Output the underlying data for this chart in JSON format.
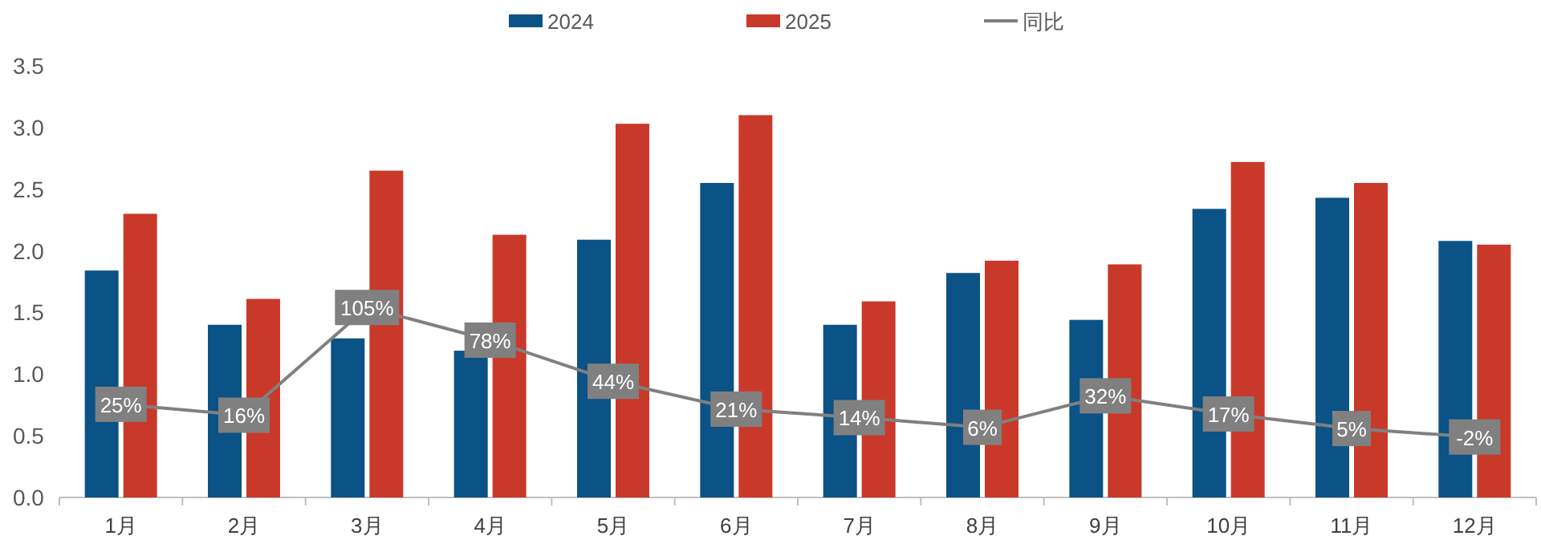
{
  "chart_data": {
    "type": "bar",
    "categories": [
      "1月",
      "2月",
      "3月",
      "4月",
      "5月",
      "6月",
      "7月",
      "8月",
      "9月",
      "10月",
      "11月",
      "12月"
    ],
    "series": [
      {
        "name": "2024",
        "color": "#0b5286",
        "values": [
          1.84,
          1.4,
          1.29,
          1.19,
          2.09,
          2.55,
          1.4,
          1.82,
          1.44,
          2.34,
          2.43,
          2.08
        ]
      },
      {
        "name": "2025",
        "color": "#c9392a",
        "values": [
          2.3,
          1.61,
          2.65,
          2.13,
          3.03,
          3.1,
          1.59,
          1.92,
          1.89,
          2.72,
          2.55,
          2.05
        ]
      },
      {
        "name": "同比",
        "type": "line",
        "axis": "y2",
        "color": "#808080",
        "values": [
          25,
          16,
          105,
          78,
          44,
          21,
          14,
          6,
          32,
          17,
          5,
          -2
        ],
        "value_labels": [
          "25%",
          "16%",
          "105%",
          "78%",
          "44%",
          "21%",
          "14%",
          "6%",
          "32%",
          "17%",
          "5%",
          "-2%"
        ]
      }
    ],
    "ylim": [
      0,
      3.5
    ],
    "yticks": [
      {
        "value": 0,
        "label": "0.0"
      },
      {
        "value": 0.5,
        "label": "0.5"
      },
      {
        "value": 1,
        "label": "1.0"
      },
      {
        "value": 1.5,
        "label": "1.5"
      },
      {
        "value": 2,
        "label": "2.0"
      },
      {
        "value": 2.5,
        "label": "2.5"
      },
      {
        "value": 3,
        "label": "3.0"
      },
      {
        "value": 3.5,
        "label": "3.5"
      }
    ],
    "marker": "square",
    "legend": "top",
    "grid": false
  }
}
